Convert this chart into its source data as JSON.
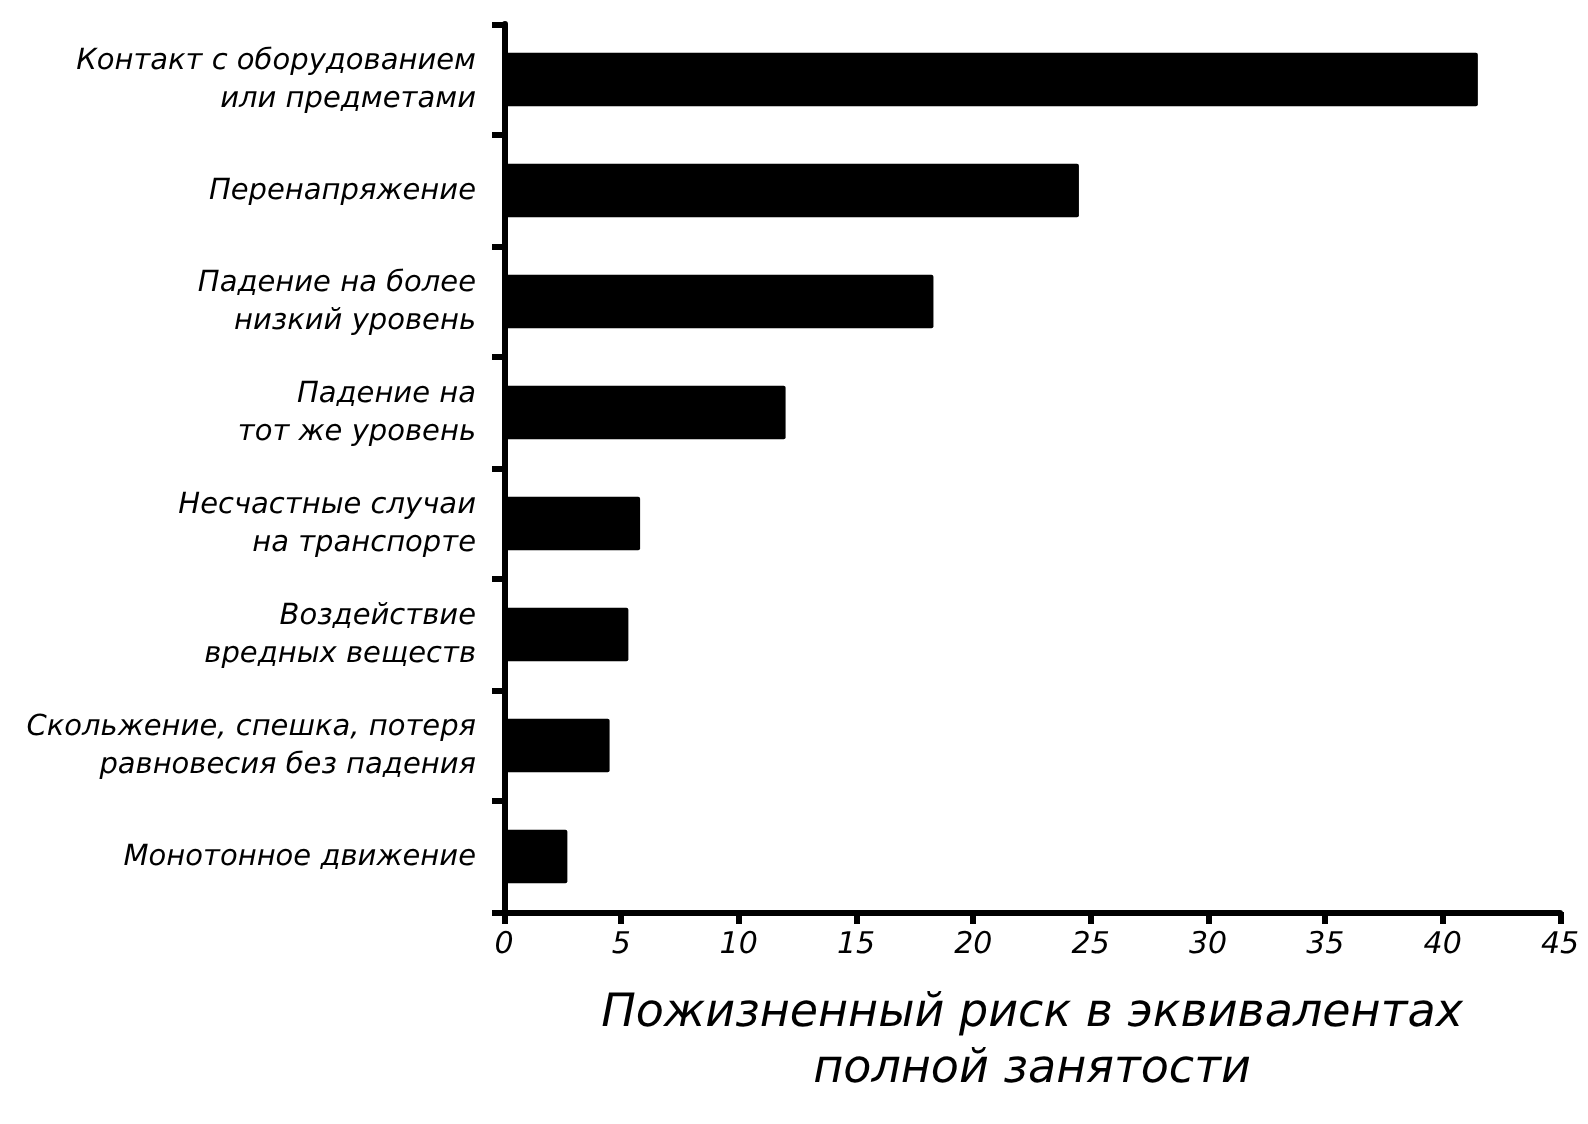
{
  "chart_data": {
    "type": "bar",
    "orientation": "horizontal",
    "categories": [
      "Контакт с оборудованием\nили предметами",
      "Перенапряжение",
      "Падение на более\nнизкий уровень",
      "Падение на\nтот же уровень",
      "Несчастные случаи\nна транспорте",
      "Воздействие\nвредных веществ",
      "Скольжение, спешка, потеря\nравновесия без падения",
      "Монотонное движение"
    ],
    "values": [
      41.5,
      24.5,
      18.3,
      12.0,
      5.8,
      5.3,
      4.5,
      2.7
    ],
    "color": "#000000",
    "xlabel": "Пожизненный риск в эквивалентах\nполной занятости",
    "xlim": [
      0,
      45
    ],
    "xticks": [
      0,
      5,
      10,
      15,
      20,
      25,
      30,
      35,
      40,
      45
    ]
  }
}
